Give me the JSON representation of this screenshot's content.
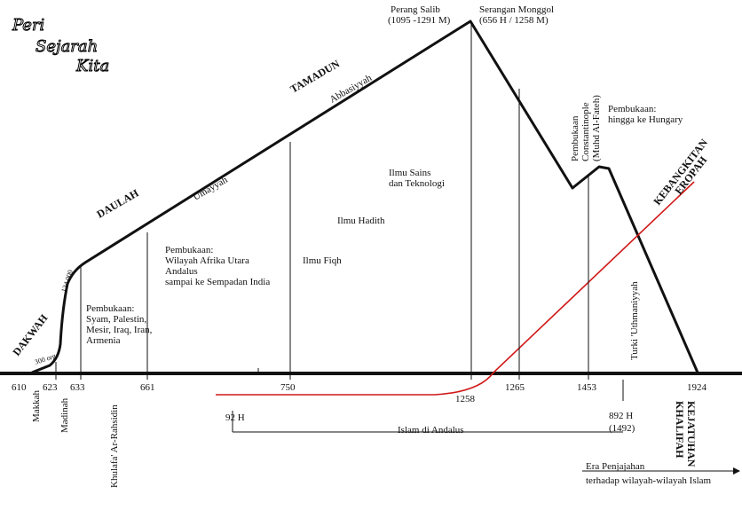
{
  "title": {
    "line1": "Peri",
    "line2": "Sejarah",
    "line3": "Kita"
  },
  "phases": {
    "dakwah": "DAKWAH",
    "daulah": "DAULAH",
    "tamadun": "TAMADUN",
    "umayyah": "Umayyah",
    "abbasiyyah": "Abbasiyyah"
  },
  "markers": {
    "small_300": "300 org",
    "small_124000": "124 000"
  },
  "top_labels": {
    "perang_salib_1": "Perang Salib",
    "perang_salib_2": "(1095 -1291 M)",
    "serangan_1": "Serangan Monggol",
    "serangan_2": "(656 H / 1258 M)"
  },
  "notes": {
    "pembukaan_a": [
      "Pembukaan:",
      "Syam, Palestin,",
      "Mesir, Iraq, Iran,",
      "Armenia"
    ],
    "pembukaan_b": [
      "Pembukaan:",
      "Wilayah Afrika Utara",
      "Andalus",
      "sampai ke Sempadan India"
    ],
    "ilmu_fiqh": "Ilmu Fiqh",
    "ilmu_hadith": "Ilmu Hadith",
    "ilmu_sains": [
      "Ilmu Sains",
      "dan Teknologi"
    ],
    "pembukaan_c": [
      "Pembukaan",
      "Constantinople",
      "(Muhd Al-Fateh)"
    ],
    "pembukaan_d": [
      "Pembukaan:",
      "hingga ke Hungary"
    ],
    "kebangkitan": [
      "KEBANGKITAN",
      "EROPAH"
    ],
    "turki": "Turki 'Uthmaniyyah"
  },
  "axis_years": {
    "y610": "610",
    "y623": "623",
    "y633": "633",
    "y661": "661",
    "y750": "750",
    "y1258": "1258",
    "y1265": "1265",
    "y1453": "1453",
    "y1924": "1924"
  },
  "places": {
    "makkah": "Makkah",
    "madinah": "Madinah",
    "khulafa": "Khulafa' Ar-Rahsidin"
  },
  "andalus": {
    "start": "92 H",
    "end_1": "892 H",
    "end_2": "(1492)",
    "label": "Islam di Andalus"
  },
  "kejatuhan": [
    "KEJATUHAN",
    "KHALIFAH"
  ],
  "penjajahan": [
    "Era Penjajahan",
    "terhadap wilayah-wilayah Islam"
  ],
  "colors": {
    "main_line": "#111111",
    "europe_line": "#d01818"
  }
}
